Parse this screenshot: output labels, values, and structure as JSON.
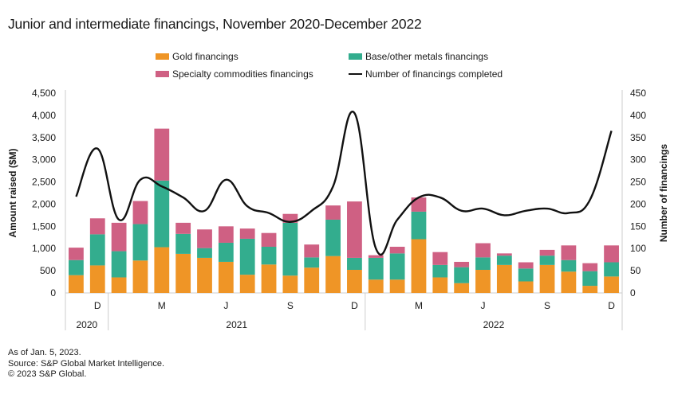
{
  "title": "Junior and intermediate financings, November 2020-December 2022",
  "legend": {
    "gold": "Gold financings",
    "base": "Base/other metals financings",
    "specialty": "Specialty commodities financings",
    "count": "Number of financings completed"
  },
  "colors": {
    "gold": "#EF9526",
    "base": "#33AD8E",
    "specialty": "#CF6083",
    "line": "#111111",
    "axis": "#CCCCCC"
  },
  "footer": {
    "line1": "As of Jan. 5, 2023.",
    "line2": "Source: S&P Global Market Intelligence.",
    "line3": "© 2023 S&P Global."
  },
  "chart_data": {
    "type": "bar",
    "stacked": true,
    "title": "Junior and intermediate financings, November 2020-December 2022",
    "ylabel": "Amount raised ($M)",
    "y2label": "Number of financings",
    "ylim": [
      0,
      4500
    ],
    "y2lim": [
      0,
      450
    ],
    "yticks": [
      "0",
      "500",
      "1,000",
      "1,500",
      "2,000",
      "2,500",
      "3,000",
      "3,500",
      "4,000",
      "4,500"
    ],
    "y2ticks": [
      "0",
      "50",
      "100",
      "150",
      "200",
      "250",
      "300",
      "350",
      "400",
      "450"
    ],
    "legend_position": "top-center",
    "categories": [
      "Nov 2020",
      "Dec 2020",
      "Jan 2021",
      "Feb 2021",
      "Mar 2021",
      "Apr 2021",
      "May 2021",
      "Jun 2021",
      "Jul 2021",
      "Aug 2021",
      "Sep 2021",
      "Oct 2021",
      "Nov 2021",
      "Dec 2021",
      "Jan 2022",
      "Feb 2022",
      "Mar 2022",
      "Apr 2022",
      "May 2022",
      "Jun 2022",
      "Jul 2022",
      "Aug 2022",
      "Sep 2022",
      "Oct 2022",
      "Nov 2022",
      "Dec 2022"
    ],
    "month_labels": [
      {
        "index": 1,
        "label": "D"
      },
      {
        "index": 4,
        "label": "M"
      },
      {
        "index": 7,
        "label": "J"
      },
      {
        "index": 10,
        "label": "S"
      },
      {
        "index": 13,
        "label": "D"
      },
      {
        "index": 16,
        "label": "M"
      },
      {
        "index": 19,
        "label": "J"
      },
      {
        "index": 22,
        "label": "S"
      },
      {
        "index": 25,
        "label": "D"
      }
    ],
    "year_groups": [
      {
        "label": "2020",
        "start": 0,
        "end": 1
      },
      {
        "label": "2021",
        "start": 2,
        "end": 13
      },
      {
        "label": "2022",
        "start": 14,
        "end": 25
      }
    ],
    "series": [
      {
        "name": "Gold financings",
        "key": "gold",
        "axis": "left",
        "values": [
          400,
          620,
          350,
          730,
          1030,
          880,
          790,
          700,
          410,
          640,
          390,
          570,
          830,
          520,
          300,
          300,
          1210,
          350,
          220,
          520,
          630,
          260,
          630,
          480,
          160,
          370
        ]
      },
      {
        "name": "Base/other metals financings",
        "key": "base",
        "axis": "left",
        "values": [
          340,
          700,
          590,
          820,
          1500,
          450,
          220,
          430,
          810,
          400,
          1190,
          230,
          820,
          270,
          490,
          590,
          620,
          280,
          360,
          280,
          210,
          290,
          210,
          260,
          330,
          320
        ]
      },
      {
        "name": "Specialty commodities financings",
        "key": "specialty",
        "axis": "left",
        "values": [
          280,
          360,
          640,
          520,
          1170,
          250,
          420,
          370,
          230,
          310,
          200,
          290,
          320,
          1270,
          60,
          150,
          320,
          290,
          120,
          320,
          50,
          140,
          130,
          330,
          180,
          380
        ]
      },
      {
        "name": "Number of financings completed",
        "key": "count",
        "axis": "right",
        "type": "line",
        "values": [
          217,
          325,
          165,
          255,
          240,
          215,
          185,
          255,
          195,
          180,
          160,
          185,
          240,
          405,
          100,
          165,
          215,
          215,
          185,
          190,
          175,
          185,
          190,
          180,
          210,
          365
        ]
      }
    ]
  }
}
